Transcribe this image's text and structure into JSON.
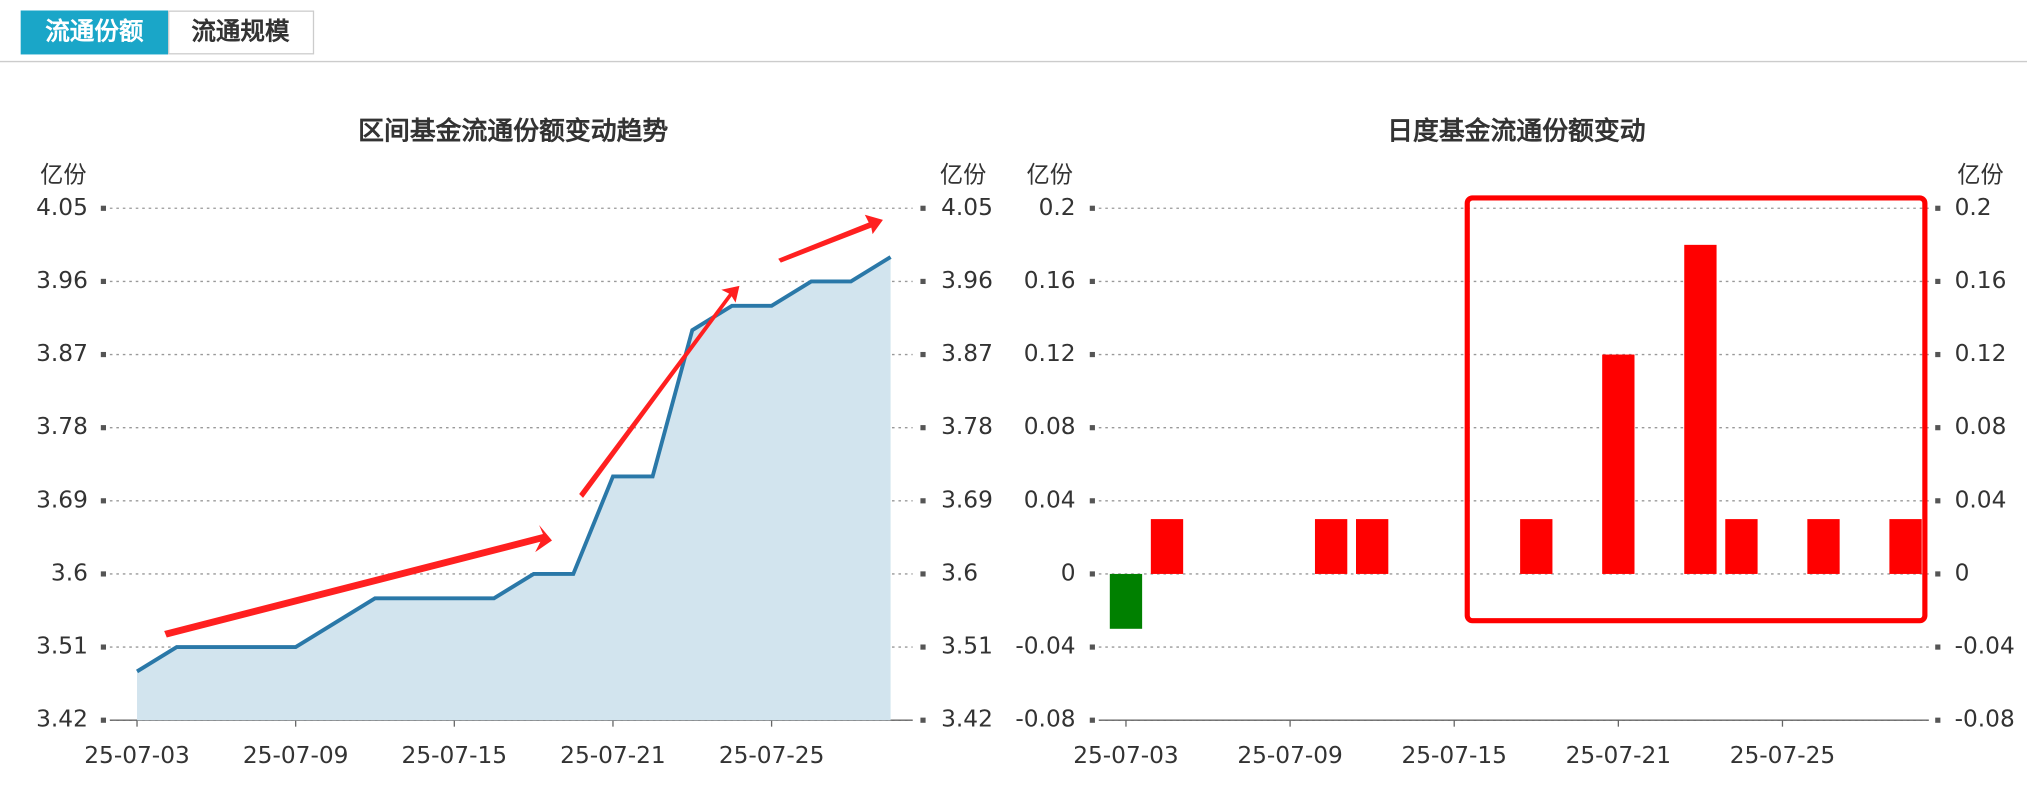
{
  "tabs": [
    "流通份额",
    "流通规模"
  ],
  "active_tab": 0,
  "chart_data": [
    {
      "type": "line",
      "title": "区间基金流通份额变动趋势",
      "y_unit": "亿份",
      "categories": [
        "25-07-03",
        null,
        null,
        null,
        "25-07-09",
        null,
        null,
        null,
        "25-07-15",
        null,
        null,
        null,
        "25-07-21",
        null,
        null,
        null,
        "25-07-25",
        null,
        null,
        null
      ],
      "values": [
        3.48,
        3.51,
        3.51,
        3.51,
        3.51,
        3.54,
        3.57,
        3.57,
        3.57,
        3.57,
        3.6,
        3.6,
        3.72,
        3.72,
        3.9,
        3.93,
        3.93,
        3.96,
        3.96,
        3.99
      ],
      "color": "#2a78a8",
      "area_color": "#d2e4ee",
      "ylim": [
        3.42,
        4.05
      ],
      "yticks": [
        3.42,
        3.51,
        3.6,
        3.69,
        3.78,
        3.87,
        3.96,
        4.05
      ],
      "grid": true,
      "mirror_axis": true
    },
    {
      "type": "bar",
      "title": "日度基金流通份额变动",
      "y_unit": "亿份",
      "categories": [
        "25-07-03",
        null,
        null,
        null,
        "25-07-09",
        null,
        null,
        null,
        "25-07-15",
        null,
        null,
        null,
        "25-07-21",
        null,
        null,
        null,
        "25-07-25",
        null,
        null,
        null
      ],
      "values": [
        -0.03,
        0.03,
        0,
        0,
        0,
        0.03,
        0.03,
        0,
        0,
        0,
        0.03,
        0,
        0.12,
        0,
        0.18,
        0.03,
        0,
        0.03,
        0,
        0.03
      ],
      "positive_color": "#ff0000",
      "negative_color": "#008000",
      "ylim": [
        -0.08,
        0.2
      ],
      "yticks": [
        -0.08,
        -0.04,
        0,
        0.04,
        0.08,
        0.12,
        0.16,
        0.2
      ],
      "grid": true,
      "mirror_axis": true
    }
  ]
}
